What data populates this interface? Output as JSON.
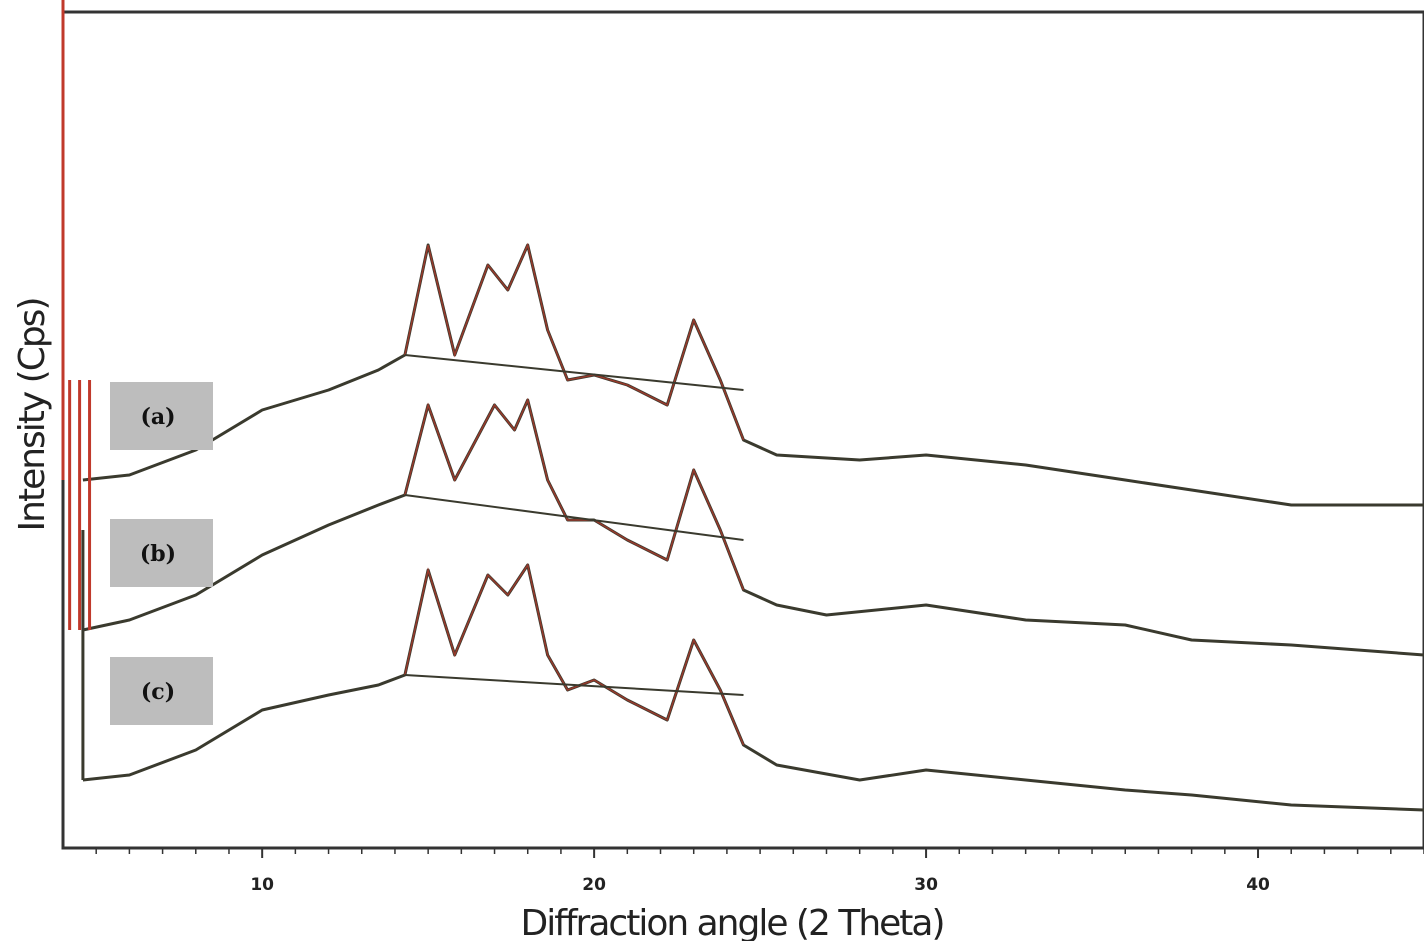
{
  "chart_data": {
    "type": "line",
    "title": "",
    "xlabel": "Diffraction angle (2 Theta)",
    "ylabel": "Intensity (Cps)",
    "xlim": [
      4,
      45
    ],
    "x_ticks": [
      10,
      20,
      30,
      40
    ],
    "grid": false,
    "colors": {
      "trace": "#3a3a2e",
      "peak": "#c0392b",
      "label_box": "#bdbdbd"
    },
    "series": [
      {
        "label": "(a)",
        "offset": 0.3,
        "points": [
          [
            4.6,
            0.0
          ],
          [
            6,
            0.01
          ],
          [
            8,
            0.06
          ],
          [
            10,
            0.14
          ],
          [
            12,
            0.18
          ],
          [
            13.5,
            0.22
          ],
          [
            14.3,
            0.25
          ],
          [
            15,
            0.47
          ],
          [
            15.8,
            0.25
          ],
          [
            16.8,
            0.43
          ],
          [
            17.4,
            0.38
          ],
          [
            18,
            0.47
          ],
          [
            18.6,
            0.3
          ],
          [
            19.2,
            0.2
          ],
          [
            20,
            0.21
          ],
          [
            21,
            0.19
          ],
          [
            22.2,
            0.15
          ],
          [
            23,
            0.32
          ],
          [
            23.8,
            0.2
          ],
          [
            24.5,
            0.08
          ],
          [
            25.5,
            0.05
          ],
          [
            28,
            0.04
          ],
          [
            30,
            0.05
          ],
          [
            33,
            0.03
          ],
          [
            36,
            0.0
          ],
          [
            38,
            -0.02
          ],
          [
            41,
            -0.05
          ],
          [
            45,
            -0.05
          ]
        ],
        "spike_x": 4.0,
        "spike_height": 2.22
      },
      {
        "label": "(b)",
        "offset": 0.0,
        "points": [
          [
            4.6,
            0.0
          ],
          [
            6,
            0.02
          ],
          [
            8,
            0.07
          ],
          [
            10,
            0.15
          ],
          [
            12,
            0.21
          ],
          [
            13.5,
            0.25
          ],
          [
            14.3,
            0.27
          ],
          [
            15,
            0.45
          ],
          [
            15.8,
            0.3
          ],
          [
            17,
            0.45
          ],
          [
            17.6,
            0.4
          ],
          [
            18,
            0.46
          ],
          [
            18.6,
            0.3
          ],
          [
            19.2,
            0.22
          ],
          [
            20,
            0.22
          ],
          [
            21,
            0.18
          ],
          [
            22.2,
            0.14
          ],
          [
            23,
            0.32
          ],
          [
            23.8,
            0.2
          ],
          [
            24.5,
            0.08
          ],
          [
            25.5,
            0.05
          ],
          [
            27,
            0.03
          ],
          [
            30,
            0.05
          ],
          [
            33,
            0.02
          ],
          [
            36,
            0.01
          ],
          [
            38,
            -0.02
          ],
          [
            41,
            -0.03
          ],
          [
            45,
            -0.05
          ]
        ],
        "spike_x": [
          4.2,
          4.5,
          4.8
        ],
        "spike_height": 0.5
      },
      {
        "label": "(c)",
        "offset": -0.3,
        "points": [
          [
            4.6,
            0.0
          ],
          [
            6,
            0.01
          ],
          [
            8,
            0.06
          ],
          [
            10,
            0.14
          ],
          [
            12,
            0.17
          ],
          [
            13.5,
            0.19
          ],
          [
            14.3,
            0.21
          ],
          [
            15,
            0.42
          ],
          [
            15.8,
            0.25
          ],
          [
            16.8,
            0.41
          ],
          [
            17.4,
            0.37
          ],
          [
            18,
            0.43
          ],
          [
            18.6,
            0.25
          ],
          [
            19.2,
            0.18
          ],
          [
            20,
            0.2
          ],
          [
            21,
            0.16
          ],
          [
            22.2,
            0.12
          ],
          [
            23,
            0.28
          ],
          [
            23.8,
            0.18
          ],
          [
            24.5,
            0.07
          ],
          [
            25.5,
            0.03
          ],
          [
            28,
            0.0
          ],
          [
            30,
            0.02
          ],
          [
            33,
            0.0
          ],
          [
            36,
            -0.02
          ],
          [
            38,
            -0.03
          ],
          [
            41,
            -0.05
          ],
          [
            45,
            -0.06
          ]
        ],
        "spike_x": 4.6,
        "spike_height": 0.5
      }
    ]
  }
}
